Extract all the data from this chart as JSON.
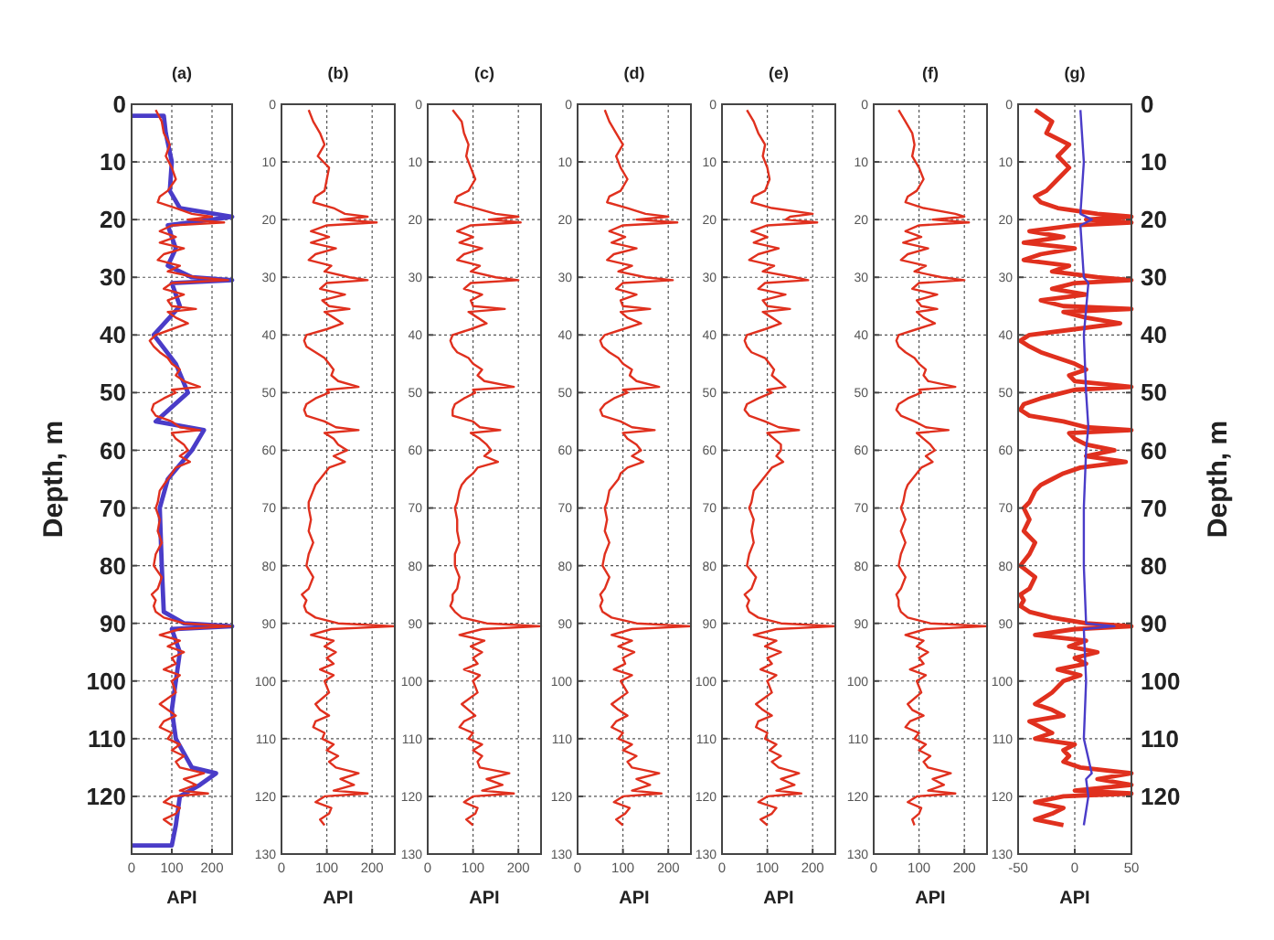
{
  "chart_data": [
    {
      "type": "line",
      "title": "(a)",
      "xlabel": "API",
      "ylabel": "Depth, m",
      "xlim": [
        0,
        250
      ],
      "xticks": [
        0,
        100,
        200
      ],
      "ylim": [
        130,
        0
      ],
      "yticks": [
        0,
        10,
        20,
        30,
        40,
        50,
        60,
        70,
        80,
        90,
        100,
        110,
        120
      ],
      "grid": true,
      "line_style": "solid",
      "series": [
        {
          "color": "#4a3cc8",
          "x": [
            0,
            80,
            85,
            100,
            95,
            120,
            250,
            200,
            90,
            110,
            90,
            150,
            250,
            100,
            120,
            55,
            110,
            140,
            60,
            180,
            150,
            90,
            70,
            75,
            80,
            130,
            250,
            100,
            120,
            110,
            100,
            110,
            150,
            210,
            170,
            120,
            110,
            100,
            0
          ],
          "values": [
            2,
            2,
            5,
            10,
            15,
            18,
            19.5,
            20,
            21,
            25,
            28,
            30,
            30.5,
            31,
            35,
            40,
            45,
            50,
            55,
            56.5,
            60,
            65,
            70,
            80,
            88,
            90,
            90.5,
            91,
            95,
            100,
            105,
            110,
            115,
            116,
            118,
            120,
            125,
            128.5,
            128.5
          ]
        },
        {
          "color": "#e0301e",
          "x": [
            60,
            75,
            80,
            95,
            85,
            100,
            110,
            90,
            70,
            65,
            110,
            150,
            200,
            140,
            230,
            100,
            70,
            110,
            70,
            130,
            80,
            65,
            120,
            90,
            160,
            240,
            100,
            80,
            130,
            90,
            100,
            160,
            90,
            110,
            140,
            100,
            60,
            45,
            55,
            70,
            90,
            100,
            120,
            110,
            130,
            170,
            100,
            110,
            80,
            55,
            50,
            60,
            100,
            120,
            170,
            100,
            110,
            130,
            140,
            120,
            145,
            110,
            100,
            90,
            80,
            70,
            65,
            60,
            70,
            65,
            75,
            60,
            55,
            75,
            65,
            50,
            60,
            55,
            60,
            80,
            130,
            250,
            120,
            70,
            120,
            90,
            130,
            100,
            110,
            80,
            120,
            100,
            110,
            70,
            90,
            110,
            80,
            70,
            100,
            90,
            120,
            100,
            130,
            110,
            120,
            180,
            130,
            160,
            120,
            190,
            100,
            80,
            120,
            110,
            80,
            100
          ],
          "values": [
            1,
            3,
            5,
            7,
            9,
            11,
            13,
            15,
            16,
            17,
            18,
            19,
            19.5,
            20,
            20.5,
            21,
            22,
            23,
            24,
            25,
            26,
            27,
            28,
            29,
            30,
            30.5,
            31,
            32,
            33,
            34,
            35,
            35.5,
            36,
            37,
            38,
            39,
            40,
            41,
            42,
            43,
            44,
            45,
            46,
            47,
            48,
            49,
            49.5,
            50,
            51,
            52,
            53,
            54,
            55,
            56,
            56.5,
            57,
            58,
            59,
            60,
            61,
            62,
            63,
            64,
            65,
            66,
            67,
            69,
            70,
            72,
            74,
            76,
            78,
            80,
            82,
            84,
            85,
            86,
            87,
            88,
            89,
            90,
            90.5,
            91,
            92,
            93,
            94,
            95,
            96,
            97,
            98,
            99,
            100,
            102,
            104,
            105,
            106,
            107,
            108,
            109,
            110,
            111,
            112,
            113,
            114,
            115,
            116,
            117,
            118,
            119,
            119.5,
            120,
            121,
            122,
            123,
            124,
            125
          ]
        }
      ]
    },
    {
      "type": "line",
      "title": "(b)",
      "xlabel": "API",
      "xlim": [
        0,
        250
      ],
      "xticks": [
        0,
        100,
        200
      ],
      "ylim": [
        130,
        0
      ],
      "yticks": [
        0,
        10,
        20,
        30,
        40,
        50,
        60,
        70,
        80,
        90,
        100,
        110,
        120,
        130
      ],
      "grid": true,
      "line_style": "solid",
      "series": [
        {
          "color": "#e0301e",
          "x": [
            60,
            70,
            85,
            95,
            80,
            105,
            100,
            95,
            75,
            70,
            115,
            140,
            190,
            130,
            210,
            100,
            65,
            105,
            65,
            120,
            75,
            60,
            110,
            95,
            150,
            190,
            100,
            85,
            140,
            90,
            105,
            150,
            95,
            115,
            135,
            100,
            55,
            50,
            55,
            75,
            95,
            105,
            115,
            110,
            125,
            170,
            100,
            105,
            75,
            55,
            50,
            55,
            95,
            120,
            170,
            95,
            115,
            125,
            145,
            115,
            140,
            105,
            95,
            85,
            75,
            70,
            60,
            60,
            65,
            60,
            70,
            60,
            55,
            70,
            60,
            45,
            55,
            50,
            55,
            75,
            125,
            250,
            110,
            65,
            115,
            95,
            120,
            100,
            115,
            85,
            115,
            95,
            105,
            75,
            85,
            105,
            75,
            70,
            95,
            90,
            115,
            100,
            125,
            105,
            120,
            170,
            130,
            160,
            115,
            190,
            95,
            75,
            110,
            105,
            85,
            95
          ],
          "values": [
            1,
            3,
            5,
            7,
            9,
            11,
            13,
            15,
            16,
            17,
            18,
            19,
            19.5,
            20,
            20.5,
            21,
            22,
            23,
            24,
            25,
            26,
            27,
            28,
            29,
            30,
            30.5,
            31,
            32,
            33,
            34,
            35,
            35.5,
            36,
            37,
            38,
            39,
            40,
            41,
            42,
            43,
            44,
            45,
            46,
            47,
            48,
            49,
            49.5,
            50,
            51,
            52,
            53,
            54,
            55,
            56,
            56.5,
            57,
            58,
            59,
            60,
            61,
            62,
            63,
            64,
            65,
            66,
            67,
            69,
            70,
            72,
            74,
            76,
            78,
            80,
            82,
            84,
            85,
            86,
            87,
            88,
            89,
            90,
            90.5,
            91,
            92,
            93,
            94,
            95,
            96,
            97,
            98,
            99,
            100,
            102,
            104,
            105,
            106,
            107,
            108,
            109,
            110,
            111,
            112,
            113,
            114,
            115,
            116,
            117,
            118,
            119,
            119.5,
            120,
            121,
            122,
            123,
            124,
            125
          ]
        }
      ]
    },
    {
      "type": "line",
      "title": "(c)",
      "xlabel": "API",
      "xlim": [
        0,
        250
      ],
      "xticks": [
        0,
        100,
        200
      ],
      "ylim": [
        130,
        0
      ],
      "yticks": [
        0,
        10,
        20,
        30,
        40,
        50,
        60,
        70,
        80,
        90,
        100,
        110,
        120,
        130
      ],
      "grid": true,
      "line_style": "solid",
      "series": [
        {
          "color": "#e0301e",
          "x": [
            55,
            75,
            80,
            90,
            85,
            95,
            105,
            90,
            65,
            60,
            105,
            150,
            200,
            135,
            205,
            95,
            65,
            100,
            70,
            120,
            80,
            65,
            115,
            95,
            150,
            200,
            95,
            80,
            120,
            95,
            100,
            170,
            90,
            110,
            130,
            95,
            55,
            50,
            55,
            65,
            90,
            100,
            120,
            110,
            125,
            190,
            100,
            105,
            80,
            60,
            55,
            55,
            100,
            115,
            160,
            95,
            115,
            130,
            140,
            125,
            155,
            110,
            100,
            85,
            75,
            70,
            65,
            60,
            65,
            65,
            70,
            60,
            60,
            70,
            65,
            55,
            55,
            50,
            60,
            75,
            130,
            250,
            120,
            70,
            125,
            95,
            120,
            100,
            110,
            80,
            115,
            100,
            110,
            75,
            90,
            105,
            80,
            70,
            100,
            90,
            120,
            100,
            120,
            110,
            115,
            180,
            130,
            165,
            120,
            190,
            100,
            80,
            110,
            105,
            85,
            100
          ],
          "values": [
            1,
            3,
            5,
            7,
            9,
            11,
            13,
            15,
            16,
            17,
            18,
            19,
            19.5,
            20,
            20.5,
            21,
            22,
            23,
            24,
            25,
            26,
            27,
            28,
            29,
            30,
            30.5,
            31,
            32,
            33,
            34,
            35,
            35.5,
            36,
            37,
            38,
            39,
            40,
            41,
            42,
            43,
            44,
            45,
            46,
            47,
            48,
            49,
            49.5,
            50,
            51,
            52,
            53,
            54,
            55,
            56,
            56.5,
            57,
            58,
            59,
            60,
            61,
            62,
            63,
            64,
            65,
            66,
            67,
            69,
            70,
            72,
            74,
            76,
            78,
            80,
            82,
            84,
            85,
            86,
            87,
            88,
            89,
            90,
            90.5,
            91,
            92,
            93,
            94,
            95,
            96,
            97,
            98,
            99,
            100,
            102,
            104,
            105,
            106,
            107,
            108,
            109,
            110,
            111,
            112,
            113,
            114,
            115,
            116,
            117,
            118,
            119,
            119.5,
            120,
            121,
            122,
            123,
            124,
            125
          ]
        }
      ]
    },
    {
      "type": "line",
      "title": "(d)",
      "xlabel": "API",
      "xlim": [
        0,
        250
      ],
      "xticks": [
        0,
        100,
        200
      ],
      "ylim": [
        130,
        0
      ],
      "yticks": [
        0,
        10,
        20,
        30,
        40,
        50,
        60,
        70,
        80,
        90,
        100,
        110,
        120,
        130
      ],
      "grid": true,
      "line_style": "solid",
      "series": [
        {
          "color": "#e0301e",
          "x": [
            60,
            70,
            85,
            100,
            85,
            95,
            110,
            95,
            70,
            65,
            110,
            150,
            200,
            130,
            220,
            100,
            70,
            105,
            75,
            130,
            80,
            65,
            120,
            90,
            150,
            210,
            100,
            85,
            130,
            95,
            100,
            160,
            95,
            110,
            140,
            100,
            60,
            50,
            55,
            70,
            90,
            100,
            120,
            115,
            130,
            180,
            100,
            110,
            80,
            60,
            50,
            55,
            95,
            120,
            170,
            100,
            110,
            130,
            140,
            120,
            145,
            110,
            95,
            90,
            80,
            70,
            65,
            60,
            65,
            60,
            70,
            60,
            55,
            70,
            60,
            50,
            55,
            50,
            55,
            75,
            130,
            250,
            120,
            75,
            120,
            90,
            125,
            100,
            105,
            80,
            120,
            95,
            110,
            75,
            90,
            110,
            85,
            75,
            100,
            90,
            120,
            100,
            130,
            110,
            120,
            180,
            130,
            160,
            120,
            185,
            100,
            80,
            115,
            105,
            85,
            100
          ],
          "values": [
            1,
            3,
            5,
            7,
            9,
            11,
            13,
            15,
            16,
            17,
            18,
            19,
            19.5,
            20,
            20.5,
            21,
            22,
            23,
            24,
            25,
            26,
            27,
            28,
            29,
            30,
            30.5,
            31,
            32,
            33,
            34,
            35,
            35.5,
            36,
            37,
            38,
            39,
            40,
            41,
            42,
            43,
            44,
            45,
            46,
            47,
            48,
            49,
            49.5,
            50,
            51,
            52,
            53,
            54,
            55,
            56,
            56.5,
            57,
            58,
            59,
            60,
            61,
            62,
            63,
            64,
            65,
            66,
            67,
            69,
            70,
            72,
            74,
            76,
            78,
            80,
            82,
            84,
            85,
            86,
            87,
            88,
            89,
            90,
            90.5,
            91,
            92,
            93,
            94,
            95,
            96,
            97,
            98,
            99,
            100,
            102,
            104,
            105,
            106,
            107,
            108,
            109,
            110,
            111,
            112,
            113,
            114,
            115,
            116,
            117,
            118,
            119,
            119.5,
            120,
            121,
            122,
            123,
            124,
            125
          ]
        }
      ]
    },
    {
      "type": "line",
      "title": "(e)",
      "xlabel": "API",
      "xlim": [
        0,
        250
      ],
      "xticks": [
        0,
        100,
        200
      ],
      "ylim": [
        130,
        0
      ],
      "yticks": [
        0,
        10,
        20,
        30,
        40,
        50,
        60,
        70,
        80,
        90,
        100,
        110,
        120,
        130
      ],
      "grid": true,
      "line_style": "solid",
      "series": [
        {
          "color": "#e0301e",
          "x": [
            55,
            70,
            80,
            95,
            90,
            100,
            105,
            95,
            70,
            65,
            110,
            200,
            150,
            140,
            210,
            100,
            65,
            100,
            70,
            125,
            80,
            60,
            115,
            90,
            160,
            190,
            95,
            80,
            140,
            90,
            100,
            150,
            90,
            110,
            130,
            95,
            55,
            50,
            55,
            65,
            95,
            105,
            115,
            110,
            125,
            140,
            100,
            110,
            80,
            55,
            50,
            60,
            95,
            125,
            170,
            100,
            115,
            130,
            130,
            120,
            135,
            110,
            100,
            90,
            80,
            70,
            65,
            60,
            70,
            65,
            70,
            60,
            55,
            75,
            65,
            50,
            60,
            55,
            60,
            80,
            130,
            250,
            120,
            70,
            120,
            95,
            130,
            100,
            110,
            85,
            120,
            100,
            110,
            75,
            90,
            110,
            80,
            75,
            100,
            95,
            120,
            105,
            130,
            110,
            125,
            170,
            130,
            160,
            120,
            175,
            100,
            80,
            120,
            110,
            85,
            100
          ],
          "values": [
            1,
            3,
            5,
            7,
            9,
            11,
            13,
            15,
            16,
            17,
            18,
            19,
            19.5,
            20,
            20.5,
            21,
            22,
            23,
            24,
            25,
            26,
            27,
            28,
            29,
            30,
            30.5,
            31,
            32,
            33,
            34,
            35,
            35.5,
            36,
            37,
            38,
            39,
            40,
            41,
            42,
            43,
            44,
            45,
            46,
            47,
            48,
            49,
            49.5,
            50,
            51,
            52,
            53,
            54,
            55,
            56,
            56.5,
            57,
            58,
            59,
            60,
            61,
            62,
            63,
            64,
            65,
            66,
            67,
            69,
            70,
            72,
            74,
            76,
            78,
            80,
            82,
            84,
            85,
            86,
            87,
            88,
            89,
            90,
            90.5,
            91,
            92,
            93,
            94,
            95,
            96,
            97,
            98,
            99,
            100,
            102,
            104,
            105,
            106,
            107,
            108,
            109,
            110,
            111,
            112,
            113,
            114,
            115,
            116,
            117,
            118,
            119,
            119.5,
            120,
            121,
            122,
            123,
            124,
            125
          ]
        }
      ]
    },
    {
      "type": "line",
      "title": "(f)",
      "xlabel": "API",
      "xlim": [
        0,
        250
      ],
      "xticks": [
        0,
        100,
        200
      ],
      "ylim": [
        130,
        0
      ],
      "yticks": [
        0,
        10,
        20,
        30,
        40,
        50,
        60,
        70,
        80,
        90,
        100,
        110,
        120,
        130
      ],
      "grid": true,
      "line_style": "solid",
      "series": [
        {
          "color": "#e0301e",
          "x": [
            55,
            70,
            85,
            90,
            85,
            100,
            110,
            95,
            75,
            70,
            110,
            180,
            200,
            130,
            210,
            100,
            70,
            105,
            65,
            120,
            75,
            60,
            115,
            90,
            150,
            200,
            100,
            85,
            140,
            95,
            105,
            140,
            95,
            110,
            135,
            95,
            55,
            50,
            55,
            70,
            90,
            100,
            115,
            110,
            120,
            180,
            100,
            105,
            75,
            55,
            50,
            60,
            90,
            115,
            165,
            95,
            110,
            125,
            135,
            115,
            130,
            105,
            95,
            85,
            75,
            70,
            65,
            60,
            70,
            60,
            70,
            60,
            55,
            70,
            60,
            50,
            55,
            55,
            60,
            75,
            125,
            250,
            115,
            70,
            110,
            95,
            120,
            100,
            110,
            80,
            115,
            95,
            105,
            75,
            85,
            110,
            80,
            70,
            100,
            90,
            115,
            100,
            125,
            110,
            120,
            170,
            130,
            155,
            120,
            180,
            95,
            75,
            105,
            100,
            85,
            90
          ],
          "values": [
            1,
            3,
            5,
            7,
            9,
            11,
            13,
            15,
            16,
            17,
            18,
            19,
            19.5,
            20,
            20.5,
            21,
            22,
            23,
            24,
            25,
            26,
            27,
            28,
            29,
            30,
            30.5,
            31,
            32,
            33,
            34,
            35,
            35.5,
            36,
            37,
            38,
            39,
            40,
            41,
            42,
            43,
            44,
            45,
            46,
            47,
            48,
            49,
            49.5,
            50,
            51,
            52,
            53,
            54,
            55,
            56,
            56.5,
            57,
            58,
            59,
            60,
            61,
            62,
            63,
            64,
            65,
            66,
            67,
            69,
            70,
            72,
            74,
            76,
            78,
            80,
            82,
            84,
            85,
            86,
            87,
            88,
            89,
            90,
            90.5,
            91,
            92,
            93,
            94,
            95,
            96,
            97,
            98,
            99,
            100,
            102,
            104,
            105,
            106,
            107,
            108,
            109,
            110,
            111,
            112,
            113,
            114,
            115,
            116,
            117,
            118,
            119,
            119.5,
            120,
            121,
            122,
            123,
            124,
            125
          ]
        }
      ]
    },
    {
      "type": "line",
      "title": "(g)",
      "xlabel": "API",
      "y2label": "Depth, m",
      "xlim": [
        -50,
        50
      ],
      "xticks": [
        -50,
        0,
        50
      ],
      "ylim": [
        130,
        0
      ],
      "yticks": [
        0,
        10,
        20,
        30,
        40,
        50,
        60,
        70,
        80,
        90,
        100,
        110,
        120,
        130
      ],
      "y2lim": [
        130,
        0
      ],
      "y2ticks": [
        0,
        10,
        20,
        30,
        40,
        50,
        60,
        70,
        80,
        90,
        100,
        110,
        120
      ],
      "grid": true,
      "line_style": "solid",
      "series": [
        {
          "color": "#e0301e",
          "x": [
            -35,
            -20,
            -25,
            -5,
            -15,
            -5,
            -15,
            -25,
            -35,
            -30,
            -15,
            20,
            50,
            10,
            50,
            0,
            -40,
            -10,
            -45,
            0,
            -30,
            -45,
            -5,
            -20,
            20,
            50,
            0,
            -20,
            10,
            -30,
            -10,
            50,
            -10,
            10,
            40,
            0,
            -40,
            -48,
            -40,
            -30,
            -15,
            0,
            10,
            -5,
            0,
            50,
            0,
            -10,
            -30,
            -45,
            -48,
            -40,
            -10,
            10,
            50,
            -5,
            0,
            10,
            35,
            10,
            45,
            5,
            -10,
            -20,
            -30,
            -35,
            -40,
            -45,
            -40,
            -45,
            -35,
            -40,
            -48,
            -35,
            -40,
            -48,
            -45,
            -48,
            -40,
            -20,
            10,
            50,
            0,
            -35,
            10,
            -5,
            20,
            0,
            10,
            -15,
            5,
            -10,
            -20,
            -35,
            -20,
            -10,
            -40,
            -30,
            -20,
            -35,
            0,
            -10,
            -5,
            -10,
            5,
            50,
            20,
            50,
            0,
            50,
            -10,
            -35,
            -10,
            -20,
            -35,
            -10
          ],
          "values": [
            1,
            3,
            5,
            7,
            9,
            11,
            13,
            15,
            16,
            17,
            18,
            19,
            19.5,
            20,
            20.5,
            21,
            22,
            23,
            24,
            25,
            26,
            27,
            28,
            29,
            30,
            30.5,
            31,
            32,
            33,
            34,
            35,
            35.5,
            36,
            37,
            38,
            39,
            40,
            41,
            42,
            43,
            44,
            45,
            46,
            47,
            48,
            49,
            49.5,
            50,
            51,
            52,
            53,
            54,
            55,
            56,
            56.5,
            57,
            58,
            59,
            60,
            61,
            62,
            63,
            64,
            65,
            66,
            67,
            69,
            70,
            72,
            74,
            76,
            78,
            80,
            82,
            84,
            85,
            86,
            87,
            88,
            89,
            90,
            90.5,
            91,
            92,
            93,
            94,
            95,
            96,
            97,
            98,
            99,
            100,
            102,
            104,
            105,
            106,
            107,
            108,
            109,
            110,
            111,
            112,
            113,
            114,
            115,
            116,
            117,
            118,
            119,
            119.5,
            120,
            121,
            122,
            123,
            124,
            125
          ]
        },
        {
          "color": "#4a3cc8",
          "x": [
            5,
            8,
            5,
            15,
            5,
            8,
            12,
            8,
            10,
            12,
            10,
            8,
            8,
            10,
            35,
            8,
            10,
            8,
            15,
            10,
            12,
            8
          ],
          "values": [
            1,
            10,
            19,
            20,
            21,
            30,
            31,
            40,
            50,
            56,
            60,
            70,
            80,
            90,
            90.5,
            91,
            100,
            110,
            116,
            117,
            120,
            125
          ]
        }
      ]
    }
  ]
}
